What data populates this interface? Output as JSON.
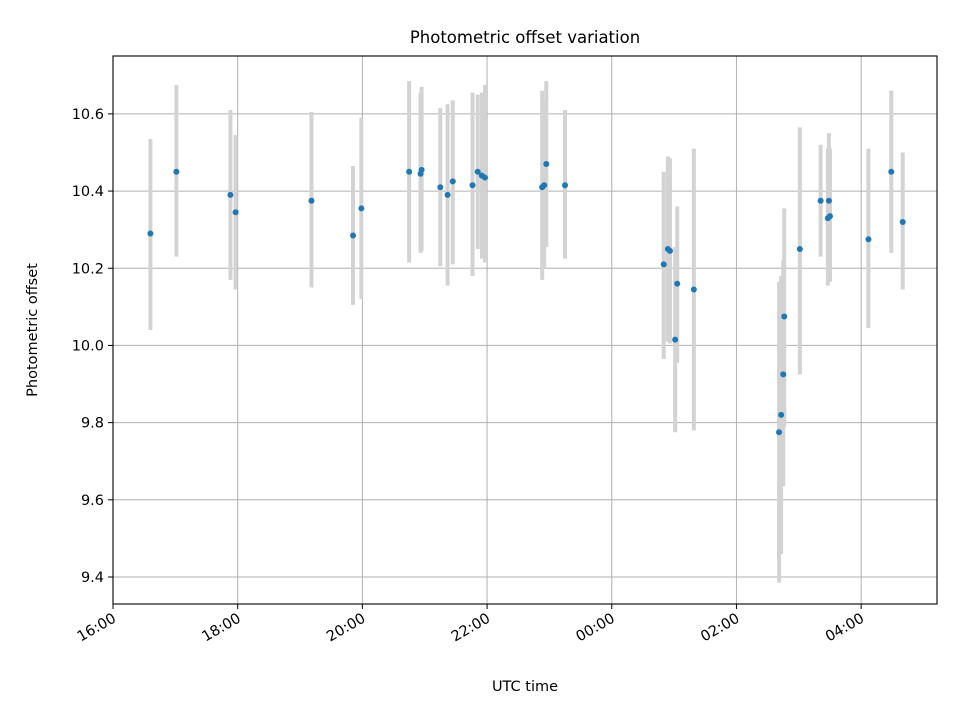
{
  "chart_data": {
    "type": "scatter",
    "title": "Photometric offset variation",
    "xlabel": "UTC time",
    "ylabel": "Photometric offset",
    "x_ticks": [
      "16:00",
      "18:00",
      "20:00",
      "22:00",
      "00:00",
      "02:00",
      "04:00"
    ],
    "y_ticks": [
      "9.4",
      "9.6",
      "9.8",
      "10.0",
      "10.2",
      "10.4",
      "10.6"
    ],
    "xlim": [
      "16:00",
      "05:13"
    ],
    "ylim": [
      9.33,
      10.75
    ],
    "grid": true,
    "marker_color": "#1f77b4",
    "errorbar_color": "#d3d3d3",
    "points": [
      {
        "t": "16:36",
        "y": 10.29,
        "lo": 10.04,
        "hi": 10.535
      },
      {
        "t": "17:01",
        "y": 10.45,
        "lo": 10.23,
        "hi": 10.675
      },
      {
        "t": "17:53",
        "y": 10.39,
        "lo": 10.17,
        "hi": 10.61
      },
      {
        "t": "17:58",
        "y": 10.345,
        "lo": 10.145,
        "hi": 10.545
      },
      {
        "t": "19:11",
        "y": 10.375,
        "lo": 10.15,
        "hi": 10.605
      },
      {
        "t": "19:51",
        "y": 10.285,
        "lo": 10.105,
        "hi": 10.465
      },
      {
        "t": "19:59",
        "y": 10.355,
        "lo": 10.12,
        "hi": 10.59
      },
      {
        "t": "20:45",
        "y": 10.45,
        "lo": 10.215,
        "hi": 10.685
      },
      {
        "t": "20:56",
        "y": 10.445,
        "lo": 10.24,
        "hi": 10.655
      },
      {
        "t": "20:57",
        "y": 10.455,
        "lo": 10.245,
        "hi": 10.67
      },
      {
        "t": "21:15",
        "y": 10.41,
        "lo": 10.205,
        "hi": 10.615
      },
      {
        "t": "21:22",
        "y": 10.39,
        "lo": 10.155,
        "hi": 10.625
      },
      {
        "t": "21:27",
        "y": 10.425,
        "lo": 10.21,
        "hi": 10.635
      },
      {
        "t": "21:46",
        "y": 10.415,
        "lo": 10.18,
        "hi": 10.655
      },
      {
        "t": "21:51",
        "y": 10.45,
        "lo": 10.25,
        "hi": 10.65
      },
      {
        "t": "21:55",
        "y": 10.44,
        "lo": 10.225,
        "hi": 10.655
      },
      {
        "t": "21:58",
        "y": 10.435,
        "lo": 10.215,
        "hi": 10.675
      },
      {
        "t": "22:53",
        "y": 10.41,
        "lo": 10.17,
        "hi": 10.66
      },
      {
        "t": "22:55",
        "y": 10.415,
        "lo": 10.2,
        "hi": 10.63
      },
      {
        "t": "22:57",
        "y": 10.47,
        "lo": 10.255,
        "hi": 10.685
      },
      {
        "t": "23:15",
        "y": 10.415,
        "lo": 10.225,
        "hi": 10.61
      },
      {
        "t": "00:50",
        "y": 10.21,
        "lo": 9.965,
        "hi": 10.45
      },
      {
        "t": "00:54",
        "y": 10.25,
        "lo": 10.01,
        "hi": 10.49
      },
      {
        "t": "00:56",
        "y": 10.245,
        "lo": 10.005,
        "hi": 10.485
      },
      {
        "t": "01:01",
        "y": 10.015,
        "lo": 9.775,
        "hi": 10.255
      },
      {
        "t": "01:03",
        "y": 10.16,
        "lo": 9.955,
        "hi": 10.36
      },
      {
        "t": "01:19",
        "y": 10.145,
        "lo": 9.78,
        "hi": 10.51
      },
      {
        "t": "02:41",
        "y": 9.775,
        "lo": 9.385,
        "hi": 10.165
      },
      {
        "t": "02:43",
        "y": 9.82,
        "lo": 9.46,
        "hi": 10.18
      },
      {
        "t": "02:45",
        "y": 9.925,
        "lo": 9.635,
        "hi": 10.22
      },
      {
        "t": "02:46",
        "y": 10.075,
        "lo": 9.79,
        "hi": 10.355
      },
      {
        "t": "03:01",
        "y": 10.25,
        "lo": 9.925,
        "hi": 10.565
      },
      {
        "t": "03:21",
        "y": 10.375,
        "lo": 10.23,
        "hi": 10.52
      },
      {
        "t": "03:28",
        "y": 10.33,
        "lo": 10.155,
        "hi": 10.51
      },
      {
        "t": "03:29",
        "y": 10.375,
        "lo": 10.2,
        "hi": 10.55
      },
      {
        "t": "03:30",
        "y": 10.335,
        "lo": 10.165,
        "hi": 10.51
      },
      {
        "t": "04:07",
        "y": 10.275,
        "lo": 10.045,
        "hi": 10.51
      },
      {
        "t": "04:29",
        "y": 10.45,
        "lo": 10.24,
        "hi": 10.66
      },
      {
        "t": "04:40",
        "y": 10.32,
        "lo": 10.145,
        "hi": 10.5
      }
    ]
  }
}
